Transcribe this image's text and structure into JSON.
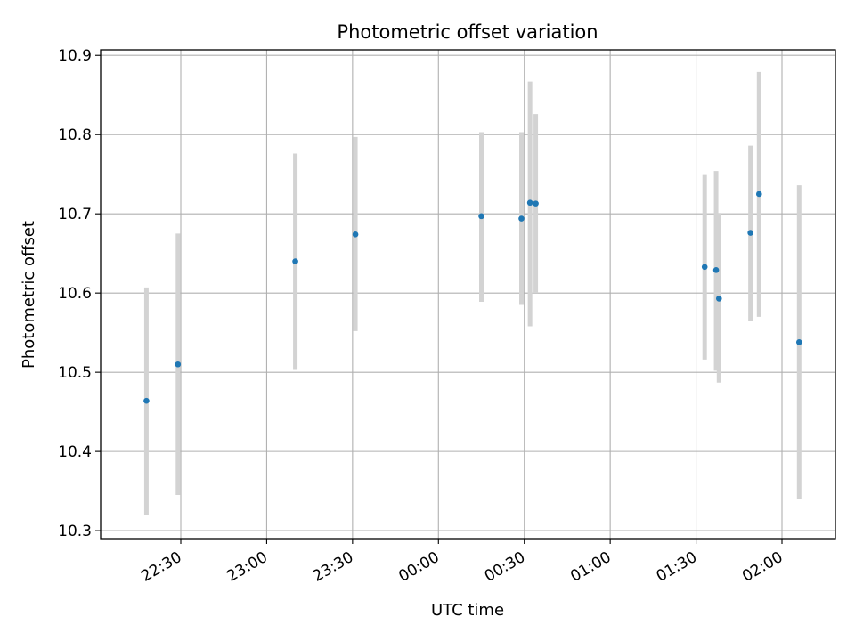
{
  "chart_data": {
    "type": "scatter",
    "title": "Photometric offset variation",
    "xlabel": "UTC time",
    "ylabel": "Photometric offset",
    "grid": true,
    "error_bars": true,
    "colors": {
      "point": "#1f77b4",
      "errorbar": "#d3d3d3",
      "grid": "#b0b0b0",
      "axes": "#000000"
    },
    "x_ticks": [
      "22:30",
      "23:00",
      "23:30",
      "00:00",
      "00:30",
      "01:00",
      "01:30",
      "02:00"
    ],
    "y_ticks": [
      "10.3",
      "10.4",
      "10.5",
      "10.6",
      "10.7",
      "10.8",
      "10.9"
    ],
    "ylim": [
      10.29,
      10.907
    ],
    "points": [
      {
        "time": "22:18",
        "y": 10.464,
        "ylow": 10.32,
        "yhigh": 10.607
      },
      {
        "time": "22:29",
        "y": 10.51,
        "ylow": 10.345,
        "yhigh": 10.675
      },
      {
        "time": "23:10",
        "y": 10.64,
        "ylow": 10.503,
        "yhigh": 10.776
      },
      {
        "time": "23:31",
        "y": 10.674,
        "ylow": 10.552,
        "yhigh": 10.797
      },
      {
        "time": "00:15",
        "y": 10.697,
        "ylow": 10.589,
        "yhigh": 10.803
      },
      {
        "time": "00:29",
        "y": 10.694,
        "ylow": 10.585,
        "yhigh": 10.803
      },
      {
        "time": "00:32",
        "y": 10.714,
        "ylow": 10.558,
        "yhigh": 10.867
      },
      {
        "time": "00:34",
        "y": 10.713,
        "ylow": 10.6,
        "yhigh": 10.826
      },
      {
        "time": "01:33",
        "y": 10.633,
        "ylow": 10.516,
        "yhigh": 10.749
      },
      {
        "time": "01:37",
        "y": 10.629,
        "ylow": 10.502,
        "yhigh": 10.754
      },
      {
        "time": "01:38",
        "y": 10.593,
        "ylow": 10.487,
        "yhigh": 10.701
      },
      {
        "time": "01:49",
        "y": 10.676,
        "ylow": 10.565,
        "yhigh": 10.786
      },
      {
        "time": "01:52",
        "y": 10.725,
        "ylow": 10.57,
        "yhigh": 10.879
      },
      {
        "time": "02:06",
        "y": 10.538,
        "ylow": 10.34,
        "yhigh": 10.736
      }
    ]
  }
}
